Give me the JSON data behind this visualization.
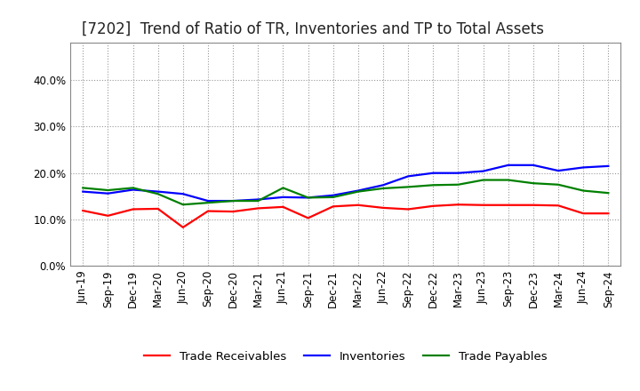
{
  "title": "[7202]  Trend of Ratio of TR, Inventories and TP to Total Assets",
  "x_labels": [
    "Jun-19",
    "Sep-19",
    "Dec-19",
    "Mar-20",
    "Jun-20",
    "Sep-20",
    "Dec-20",
    "Mar-21",
    "Jun-21",
    "Sep-21",
    "Dec-21",
    "Mar-22",
    "Jun-22",
    "Sep-22",
    "Dec-22",
    "Mar-23",
    "Jun-23",
    "Sep-23",
    "Dec-23",
    "Mar-24",
    "Jun-24",
    "Sep-24"
  ],
  "trade_receivables": [
    0.119,
    0.108,
    0.122,
    0.123,
    0.083,
    0.118,
    0.117,
    0.124,
    0.127,
    0.103,
    0.128,
    0.131,
    0.125,
    0.122,
    0.129,
    0.132,
    0.131,
    0.131,
    0.131,
    0.13,
    0.113,
    0.113
  ],
  "inventories": [
    0.16,
    0.156,
    0.164,
    0.16,
    0.155,
    0.14,
    0.14,
    0.143,
    0.148,
    0.147,
    0.152,
    0.162,
    0.174,
    0.193,
    0.2,
    0.2,
    0.204,
    0.217,
    0.217,
    0.205,
    0.212,
    0.215
  ],
  "trade_payables": [
    0.168,
    0.163,
    0.168,
    0.155,
    0.132,
    0.136,
    0.14,
    0.14,
    0.168,
    0.147,
    0.148,
    0.16,
    0.167,
    0.17,
    0.174,
    0.175,
    0.185,
    0.185,
    0.178,
    0.175,
    0.162,
    0.157
  ],
  "ylim": [
    0.0,
    0.48
  ],
  "yticks": [
    0.0,
    0.1,
    0.2,
    0.3,
    0.4
  ],
  "color_tr": "#FF0000",
  "color_inv": "#0000FF",
  "color_tp": "#008000",
  "legend_labels": [
    "Trade Receivables",
    "Inventories",
    "Trade Payables"
  ],
  "bg_color": "#FFFFFF",
  "plot_bg_color": "#FFFFFF",
  "grid_color": "#999999",
  "line_width": 1.6,
  "title_fontsize": 12,
  "tick_fontsize": 8.5,
  "legend_fontsize": 9.5
}
